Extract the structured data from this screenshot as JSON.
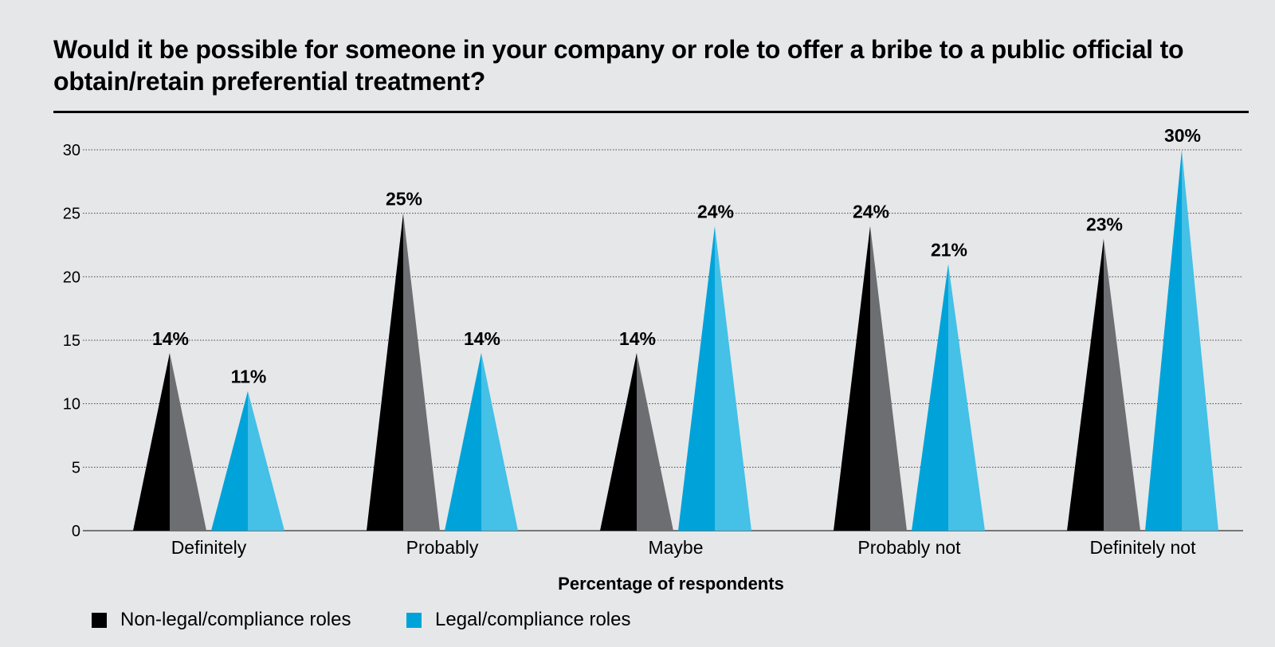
{
  "chart_data": {
    "type": "bar",
    "title": "Would it be possible for someone in your company or role to offer a bribe to a public official to obtain/retain preferential treatment?",
    "categories": [
      "Definitely",
      "Probably",
      "Maybe",
      "Probably not",
      "Definitely not"
    ],
    "series": [
      {
        "name": "Non-legal/compliance roles",
        "values": [
          14,
          25,
          14,
          24,
          23
        ],
        "color_dark": "#000000",
        "color_light": "#6d6e71"
      },
      {
        "name": "Legal/compliance roles",
        "values": [
          11,
          14,
          24,
          21,
          30
        ],
        "color_dark": "#00a3d9",
        "color_light": "#45c0e6"
      }
    ],
    "data_labels": [
      [
        "14%",
        "25%",
        "14%",
        "24%",
        "23%"
      ],
      [
        "11%",
        "14%",
        "24%",
        "21%",
        "30%"
      ]
    ],
    "xlabel": "Percentage of respondents",
    "ylabel": "",
    "ylim": [
      0,
      30
    ],
    "yticks": [
      "0",
      "5",
      "10",
      "15",
      "20",
      "25",
      "30"
    ],
    "grid": true,
    "legend": "bottom-left"
  }
}
